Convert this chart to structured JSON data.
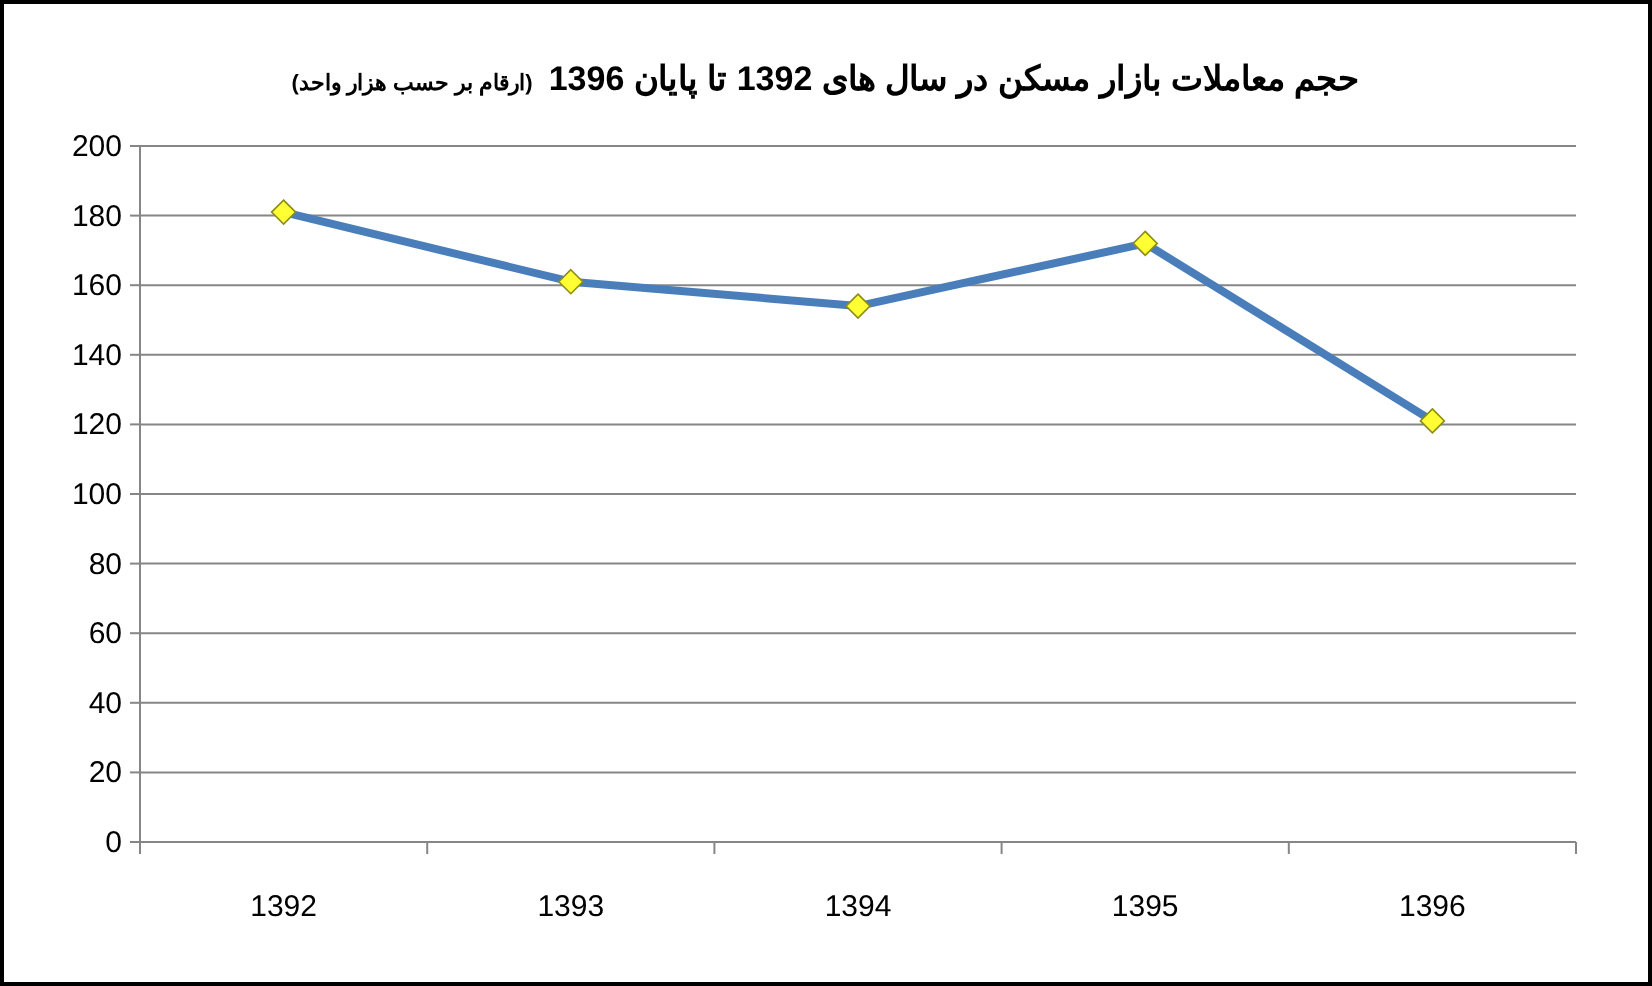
{
  "chart_data": {
    "type": "line",
    "title": "حجم معاملات بازار مسکن در سال های 1392 تا پایان 1396",
    "subtitle": "(ارقام بر حسب هزار واحد)",
    "categories": [
      "1392",
      "1393",
      "1394",
      "1395",
      "1396"
    ],
    "series": [
      {
        "color": "#4a7ebb",
        "values": [
          181,
          161,
          154,
          172,
          121
        ]
      }
    ],
    "marker": "diamond",
    "ylim": [
      0,
      200
    ],
    "yticks": [
      0,
      20,
      40,
      60,
      80,
      100,
      120,
      140,
      160,
      180,
      200
    ],
    "grid": "y"
  }
}
